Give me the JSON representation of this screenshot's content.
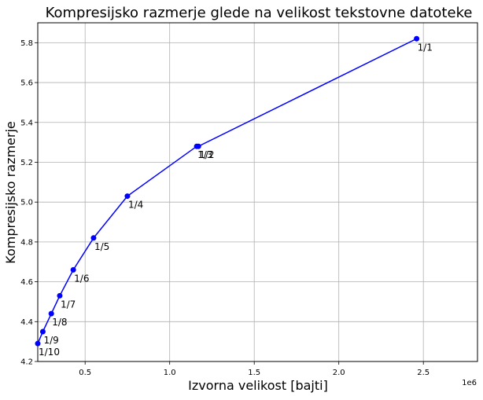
{
  "chart_data": {
    "type": "line",
    "title": "Kompresijsko razmerje glede na velikost tekstovne datoteke",
    "xlabel": "Izvorna velikost [bajti]",
    "ylabel": "Kompresijsko razmerje",
    "x_offset_label": "1e6",
    "xlim": [
      0.22,
      2.82
    ],
    "ylim": [
      4.2,
      5.9
    ],
    "x_scale_factor": 1000000,
    "x_ticks": [
      0.5,
      1.0,
      1.5,
      2.0,
      2.5
    ],
    "x_tick_labels": [
      "0.5",
      "1.0",
      "1.5",
      "2.0",
      "2.5"
    ],
    "y_ticks": [
      4.2,
      4.4,
      4.6,
      4.8,
      5.0,
      5.2,
      5.4,
      5.6,
      5.8
    ],
    "y_tick_labels": [
      "4.2",
      "4.4",
      "4.6",
      "4.8",
      "5.0",
      "5.2",
      "5.4",
      "5.6",
      "5.8"
    ],
    "grid": true,
    "series": [
      {
        "color": "#0000ff",
        "marker": "circle",
        "points": [
          {
            "x": 0.22,
            "y": 4.29,
            "label": "1/10"
          },
          {
            "x": 0.25,
            "y": 4.35,
            "label": "1/9"
          },
          {
            "x": 0.3,
            "y": 4.44,
            "label": "1/8"
          },
          {
            "x": 0.35,
            "y": 4.53,
            "label": "1/7"
          },
          {
            "x": 0.43,
            "y": 4.66,
            "label": "1/6"
          },
          {
            "x": 0.55,
            "y": 4.82,
            "label": "1/5"
          },
          {
            "x": 0.75,
            "y": 5.03,
            "label": "1/4"
          },
          {
            "x": 1.16,
            "y": 5.28,
            "label": "1/3"
          },
          {
            "x": 1.17,
            "y": 5.28,
            "label": "1/2"
          },
          {
            "x": 2.46,
            "y": 5.82,
            "label": "1/1"
          }
        ]
      }
    ]
  }
}
